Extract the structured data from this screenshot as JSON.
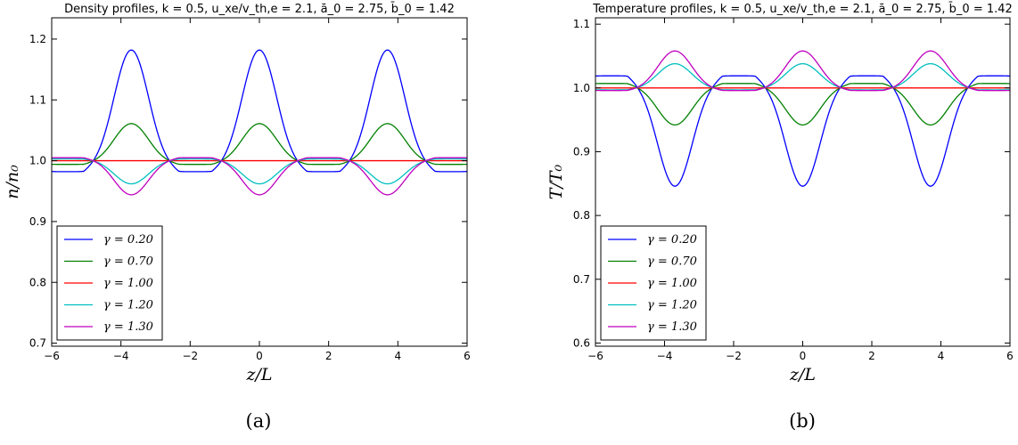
{
  "chart_data": [
    {
      "type": "line",
      "title": "Density profiles, k = 0.5, u_xe/v_th,e = 2.1, ā_0 = 2.75, b̄_0 = 1.42",
      "xlabel": "z/L",
      "ylabel": "n/n₀",
      "xlim": [
        -6,
        6
      ],
      "ylim": [
        0.695,
        1.235
      ],
      "xticks": [
        -6,
        -4,
        -2,
        0,
        2,
        4,
        6
      ],
      "xtick_labels": [
        "−6",
        "−4",
        "−2",
        "0",
        "2",
        "4",
        "6"
      ],
      "yticks": [
        0.7,
        0.8,
        0.9,
        1.0,
        1.1,
        1.2
      ],
      "ytick_labels": [
        "0.7",
        "0.8",
        "0.9",
        "1.0",
        "1.1",
        "1.2"
      ],
      "grid": false,
      "legend": "lower-left",
      "caption": "(a)",
      "period": 3.7,
      "series": [
        {
          "name": "γ = 0.20",
          "color": "#0000ff",
          "peak": 1.182,
          "min": 0.982
        },
        {
          "name": "γ = 0.70",
          "color": "#008000",
          "peak": 1.061,
          "min": 0.994
        },
        {
          "name": "γ = 1.00",
          "color": "#ff0000",
          "peak": 1.0,
          "min": 1.0
        },
        {
          "name": "γ = 1.20",
          "color": "#00bfbf",
          "peak": 0.962,
          "min": 1.003
        },
        {
          "name": "γ = 1.30",
          "color": "#bf00bf",
          "peak": 0.944,
          "min": 1.005
        }
      ]
    },
    {
      "type": "line",
      "title": "Temperature profiles, k = 0.5, u_xe/v_th,e = 2.1, ā_0 = 2.75, b̄_0 = 1.42",
      "xlabel": "z/L",
      "ylabel": "T/T₀",
      "xlim": [
        -6,
        6
      ],
      "ylim": [
        0.595,
        1.11
      ],
      "xticks": [
        -6,
        -4,
        -2,
        0,
        2,
        4,
        6
      ],
      "xtick_labels": [
        "−6",
        "−4",
        "−2",
        "0",
        "2",
        "4",
        "6"
      ],
      "yticks": [
        0.6,
        0.7,
        0.8,
        0.9,
        1.0,
        1.1
      ],
      "ytick_labels": [
        "0.6",
        "0.7",
        "0.8",
        "0.9",
        "1.0",
        "1.1"
      ],
      "grid": false,
      "legend": "lower-left",
      "caption": "(b)",
      "period": 3.7,
      "series": [
        {
          "name": "γ = 0.20",
          "color": "#0000ff",
          "peak": 0.846,
          "min": 1.019
        },
        {
          "name": "γ = 0.70",
          "color": "#008000",
          "peak": 0.942,
          "min": 1.007
        },
        {
          "name": "γ = 1.00",
          "color": "#ff0000",
          "peak": 1.0,
          "min": 1.0
        },
        {
          "name": "γ = 1.20",
          "color": "#00bfbf",
          "peak": 1.038,
          "min": 0.997
        },
        {
          "name": "γ = 1.30",
          "color": "#bf00bf",
          "peak": 1.058,
          "min": 0.996
        }
      ]
    }
  ]
}
